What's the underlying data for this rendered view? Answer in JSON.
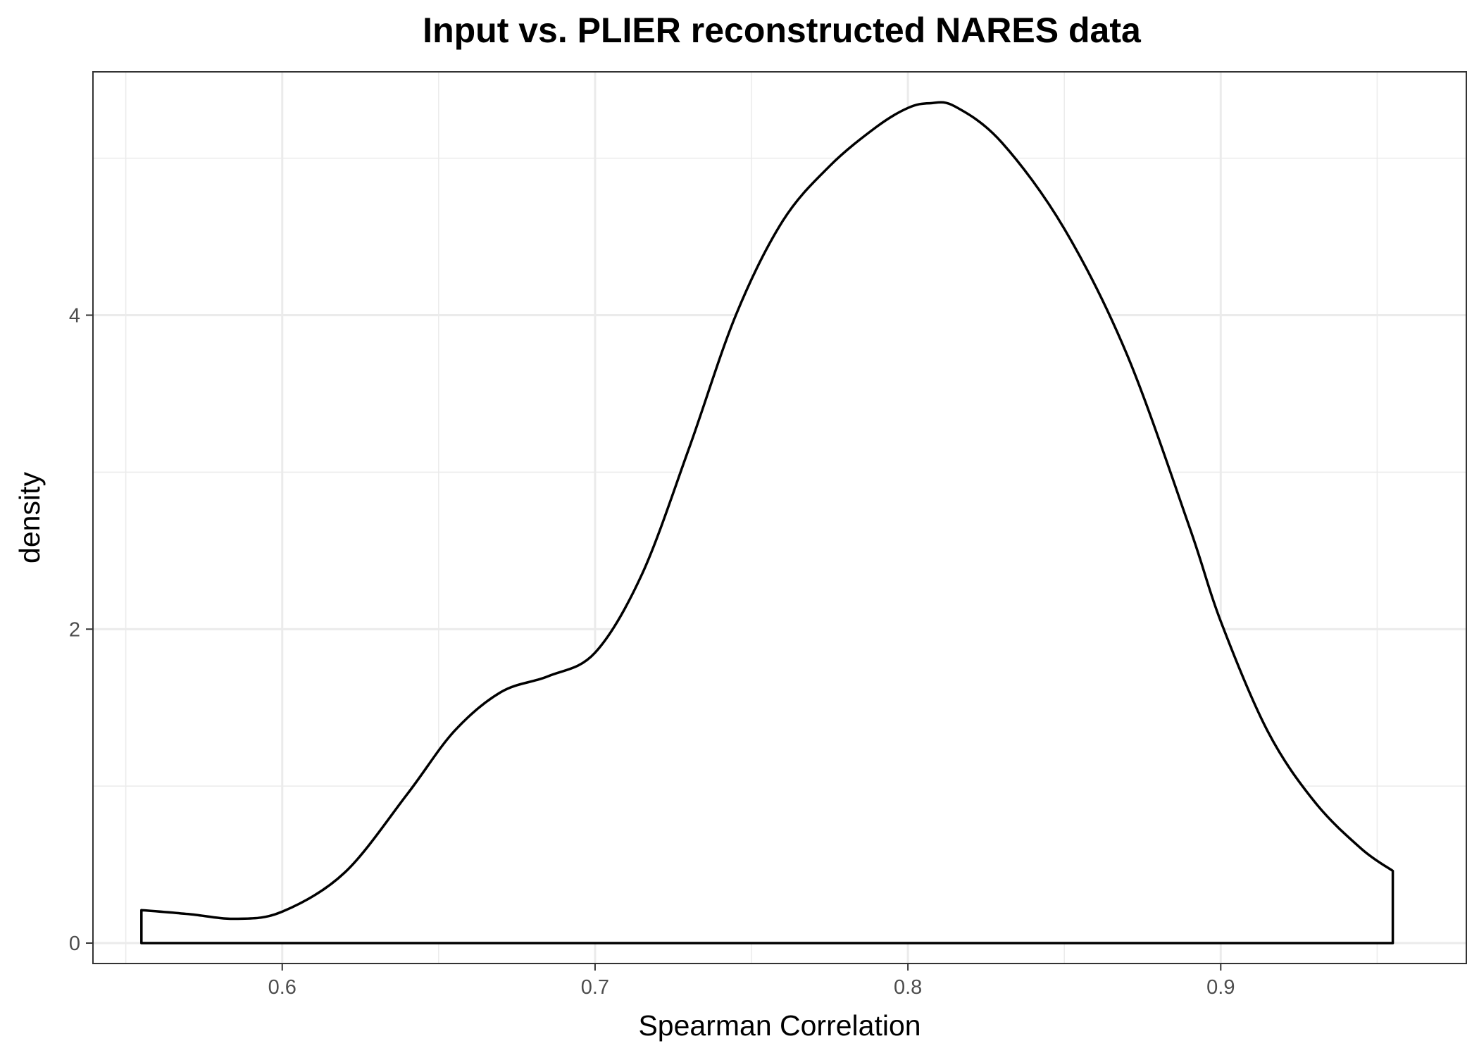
{
  "chart_data": {
    "type": "area",
    "title": "Input vs. PLIER reconstructed NARES data",
    "xlabel": "Spearman Correlation",
    "ylabel": "density",
    "xlim": [
      0.5395,
      0.9785
    ],
    "ylim": [
      -0.13,
      5.55
    ],
    "x_ticks": [
      0.6,
      0.7,
      0.8,
      0.9
    ],
    "x_tick_labels": [
      "0.6",
      "0.7",
      "0.8",
      "0.9"
    ],
    "y_ticks": [
      0,
      2,
      4
    ],
    "y_tick_labels": [
      "0",
      "2",
      "4"
    ],
    "grid": true,
    "legend": "none",
    "colors": {
      "outline": "#000000",
      "fill": "#ffffff",
      "grid": "#ebebeb",
      "panel_border": "#333333"
    },
    "series": [
      {
        "x": [
          0.555,
          0.57,
          0.585,
          0.6,
          0.62,
          0.64,
          0.655,
          0.67,
          0.685,
          0.7,
          0.715,
          0.73,
          0.745,
          0.76,
          0.775,
          0.79,
          0.8,
          0.807,
          0.815,
          0.83,
          0.85,
          0.87,
          0.89,
          0.9,
          0.915,
          0.93,
          0.945,
          0.955
        ],
        "y": [
          0.21,
          0.185,
          0.155,
          0.2,
          0.45,
          0.95,
          1.35,
          1.6,
          1.7,
          1.85,
          2.35,
          3.15,
          4.0,
          4.6,
          4.95,
          5.2,
          5.32,
          5.35,
          5.33,
          5.1,
          4.55,
          3.75,
          2.65,
          2.05,
          1.35,
          0.9,
          0.6,
          0.46
        ]
      }
    ]
  }
}
